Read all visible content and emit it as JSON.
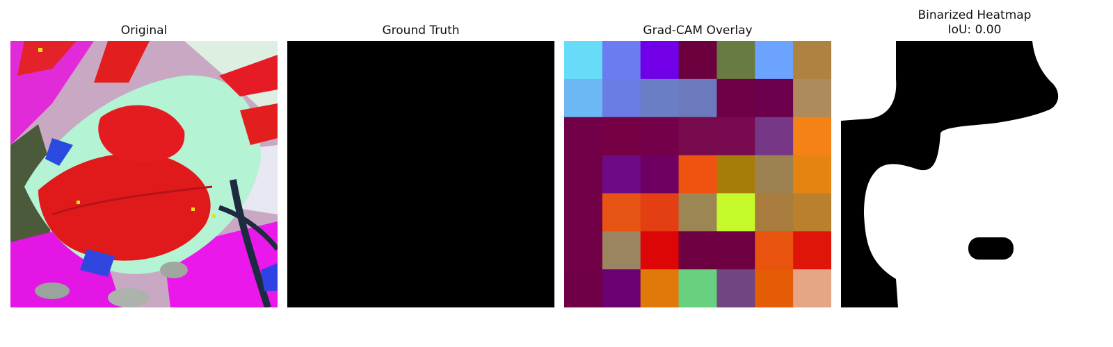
{
  "panels": {
    "original": {
      "title": "Original"
    },
    "ground_truth": {
      "title": "Ground Truth"
    },
    "gradcam": {
      "title": "Grad-CAM Overlay",
      "grid": [
        [
          "#66dcf8",
          "#6a7cef",
          "#7100e8",
          "#6c003f",
          "#687b42",
          "#6ca3ff",
          "#ae8240"
        ],
        [
          "#6cb8f5",
          "#6a7de4",
          "#6a7ec5",
          "#6a7abd",
          "#6e0045",
          "#6d004d",
          "#ae8b5c"
        ],
        [
          "#720048",
          "#750043",
          "#730048",
          "#760a4d",
          "#780a4f",
          "#763786",
          "#f58216"
        ],
        [
          "#720047",
          "#6e0a85",
          "#6f0061",
          "#f0520f",
          "#a67d08",
          "#9d8251",
          "#e68411"
        ],
        [
          "#720047",
          "#e65312",
          "#e43f12",
          "#9b8654",
          "#c5f929",
          "#a87c3c",
          "#bb802e"
        ],
        [
          "#720047",
          "#9a8560",
          "#dd0606",
          "#6c0040",
          "#6c0041",
          "#e85310",
          "#e0150a"
        ],
        [
          "#6f0045",
          "#6a0072",
          "#e0790a",
          "#68d17f",
          "#6f4682",
          "#e55c07",
          "#e6a584"
        ]
      ]
    },
    "binarized": {
      "title_line1": "Binarized Heatmap",
      "title_line2": "IoU: 0.00"
    }
  }
}
